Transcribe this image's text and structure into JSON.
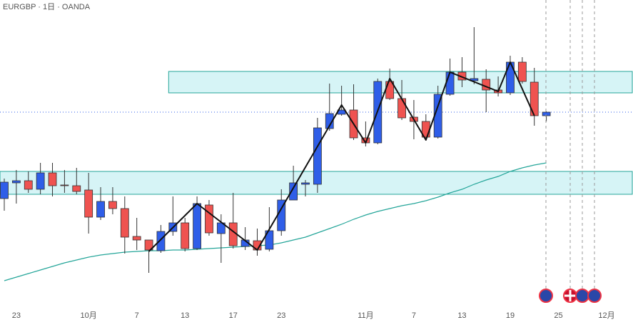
{
  "chart_data": {
    "type": "candlestick",
    "title": "EURGBP · 1日 · OANDA",
    "ylim": [
      0,
      455
    ],
    "up_color": "#2f5ee8",
    "down_color": "#ef5350",
    "open": [
      177,
      199,
      202,
      190,
      213,
      196,
      195,
      189,
      151,
      173,
      163,
      124,
      119,
      104,
      131,
      143,
      107,
      168,
      128,
      143,
      110,
      118,
      106,
      132,
      175,
      197,
      197,
      275,
      295,
      301,
      262,
      255,
      341,
      317,
      291,
      285,
      263,
      323,
      354,
      342,
      344,
      329,
      325,
      368,
      340,
      293
    ],
    "high": [
      205,
      217,
      215,
      227,
      227,
      217,
      220,
      213,
      193,
      193,
      180,
      150,
      119,
      140,
      180,
      150,
      180,
      175,
      155,
      185,
      137,
      135,
      165,
      190,
      223,
      203,
      290,
      338,
      335,
      337,
      285,
      345,
      359,
      343,
      315,
      295,
      335,
      373,
      375,
      417,
      358,
      348,
      377,
      375,
      360,
      299
    ],
    "low": [
      160,
      170,
      185,
      183,
      180,
      185,
      183,
      128,
      147,
      155,
      100,
      105,
      73,
      101,
      125,
      103,
      105,
      125,
      87,
      107,
      105,
      97,
      103,
      125,
      175,
      180,
      185,
      272,
      293,
      259,
      250,
      253,
      315,
      287,
      260,
      259,
      261,
      321,
      333,
      337,
      298,
      320,
      322,
      338,
      279,
      285
    ],
    "close": [
      200,
      202,
      190,
      213,
      195,
      195,
      187,
      151,
      173,
      163,
      123,
      119,
      105,
      131,
      143,
      107,
      170,
      129,
      143,
      111,
      119,
      105,
      132,
      175,
      199,
      199,
      276,
      296,
      301,
      262,
      255,
      341,
      317,
      290,
      285,
      263,
      323,
      354,
      343,
      345,
      329,
      325,
      368,
      341,
      293,
      298
    ],
    "x_labels": [
      {
        "index": 1,
        "label": "23"
      },
      {
        "index": 7,
        "label": "10月"
      },
      {
        "index": 11,
        "label": "7"
      },
      {
        "index": 15,
        "label": "13"
      },
      {
        "index": 19,
        "label": "17"
      },
      {
        "index": 23,
        "label": "23"
      },
      {
        "index": 30,
        "label": "11月"
      },
      {
        "index": 34,
        "label": "7"
      },
      {
        "index": 38,
        "label": "13"
      },
      {
        "index": 42,
        "label": "19"
      },
      {
        "index": 46,
        "label": "25"
      },
      {
        "index": 50,
        "label": "12月"
      }
    ],
    "ma": {
      "color": "#26a69a",
      "values": [
        62,
        67,
        72,
        77,
        82,
        87,
        91,
        95,
        98,
        100,
        102,
        103,
        104,
        104,
        105,
        105,
        106,
        107,
        108,
        109,
        110,
        111,
        112,
        115,
        119,
        123,
        129,
        135,
        141,
        148,
        154,
        159,
        163,
        167,
        170,
        174,
        179,
        185,
        190,
        197,
        203,
        208,
        215,
        220,
        224,
        227
      ]
    },
    "zigzag": {
      "color": "#111111",
      "x": [
        12,
        16,
        21,
        28,
        30,
        32,
        35,
        37,
        41,
        42,
        44
      ],
      "values": [
        103,
        170,
        105,
        308,
        255,
        345,
        259,
        354,
        327,
        368,
        293
      ]
    },
    "zones": [
      {
        "start": 14,
        "range": [
          325,
          355
        ]
      },
      {
        "start": 0,
        "range": [
          183,
          215
        ]
      }
    ],
    "zone_color": "#d6f4f6",
    "zone_border": "#26a69a",
    "price_line": 298
  }
}
